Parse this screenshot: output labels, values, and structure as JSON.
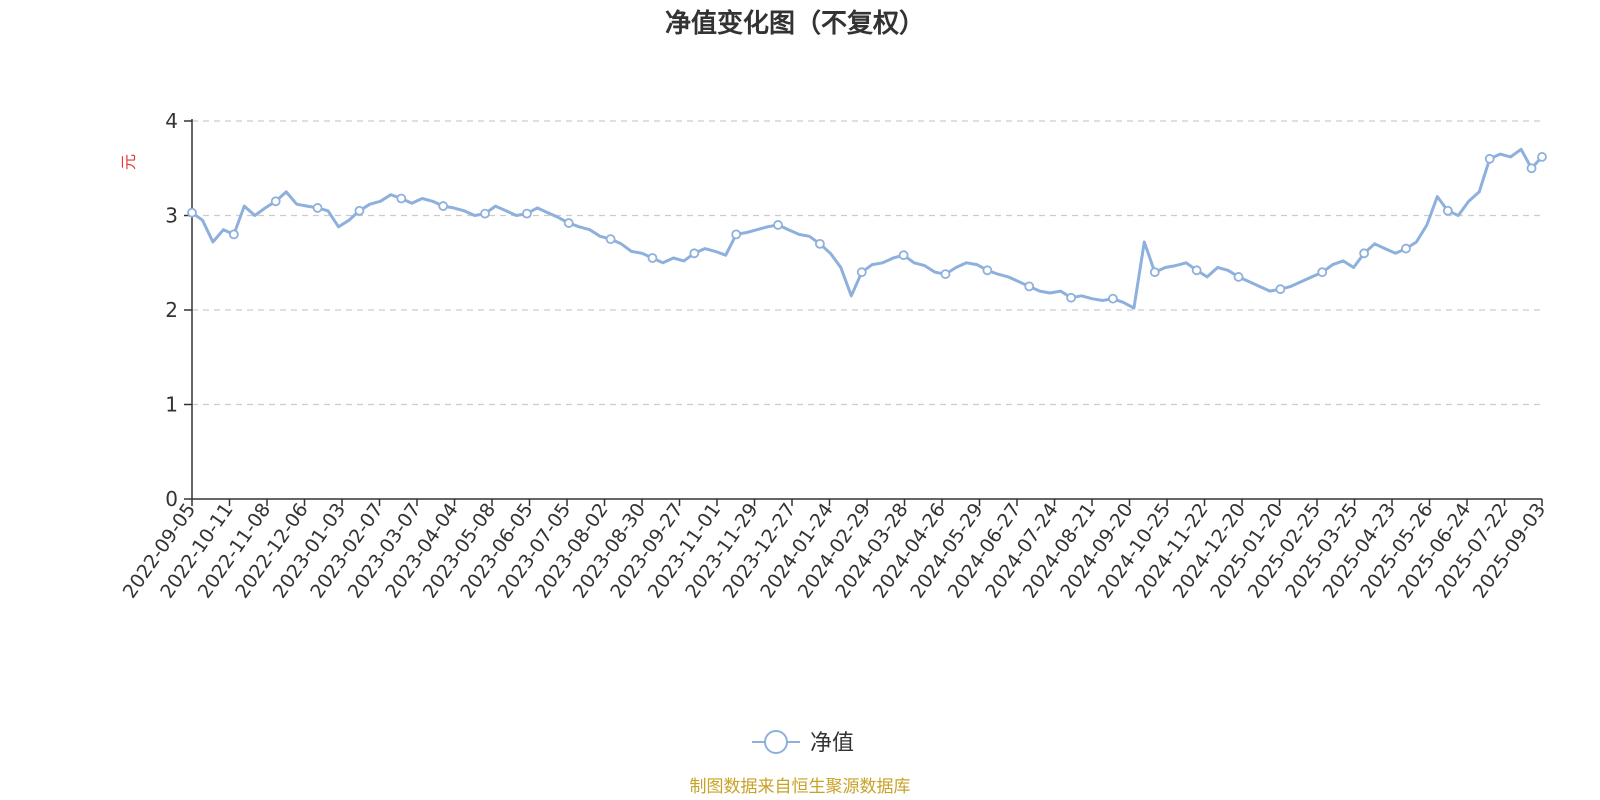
{
  "chart_data": {
    "type": "line",
    "title": "净值变化图（不复权）",
    "ylabel": "元",
    "xlabel": "",
    "ylim": [
      0,
      4
    ],
    "yticks": [
      0,
      1,
      2,
      3,
      4
    ],
    "grid": true,
    "x_ticks": [
      "2022-09-05",
      "2022-10-11",
      "2022-11-08",
      "2022-12-06",
      "2023-01-03",
      "2023-02-07",
      "2023-03-07",
      "2023-04-04",
      "2023-05-08",
      "2023-06-05",
      "2023-07-05",
      "2023-08-02",
      "2023-08-30",
      "2023-09-27",
      "2023-11-01",
      "2023-11-29",
      "2023-12-27",
      "2024-01-24",
      "2024-02-29",
      "2024-03-28",
      "2024-04-26",
      "2024-05-29",
      "2024-06-27",
      "2024-07-24",
      "2024-08-21",
      "2024-09-20",
      "2024-10-25",
      "2024-11-22",
      "2024-12-20",
      "2025-01-20",
      "2025-02-25",
      "2025-03-25",
      "2025-04-23",
      "2025-05-26",
      "2025-06-24",
      "2025-07-22",
      "2025-09-03"
    ],
    "series": [
      {
        "name": "净值",
        "color": "#8eb0dc",
        "values": [
          3.03,
          2.95,
          2.72,
          2.85,
          2.8,
          3.1,
          3.0,
          3.08,
          3.15,
          3.25,
          3.12,
          3.1,
          3.08,
          3.05,
          2.88,
          2.95,
          3.05,
          3.12,
          3.15,
          3.22,
          3.18,
          3.13,
          3.18,
          3.15,
          3.1,
          3.08,
          3.05,
          3.0,
          3.02,
          3.1,
          3.05,
          3.0,
          3.02,
          3.08,
          3.03,
          2.98,
          2.92,
          2.88,
          2.85,
          2.78,
          2.75,
          2.7,
          2.62,
          2.6,
          2.55,
          2.5,
          2.55,
          2.52,
          2.6,
          2.65,
          2.62,
          2.58,
          2.8,
          2.82,
          2.85,
          2.88,
          2.9,
          2.85,
          2.8,
          2.78,
          2.7,
          2.6,
          2.45,
          2.15,
          2.4,
          2.48,
          2.5,
          2.55,
          2.58,
          2.5,
          2.47,
          2.4,
          2.38,
          2.45,
          2.5,
          2.48,
          2.42,
          2.38,
          2.35,
          2.3,
          2.25,
          2.2,
          2.18,
          2.2,
          2.13,
          2.15,
          2.12,
          2.1,
          2.12,
          2.08,
          2.02,
          2.72,
          2.4,
          2.45,
          2.47,
          2.5,
          2.42,
          2.35,
          2.45,
          2.42,
          2.35,
          2.3,
          2.25,
          2.2,
          2.22,
          2.25,
          2.3,
          2.35,
          2.4,
          2.48,
          2.52,
          2.45,
          2.6,
          2.7,
          2.65,
          2.6,
          2.65,
          2.72,
          2.9,
          3.2,
          3.05,
          3.0,
          3.15,
          3.25,
          3.6,
          3.65,
          3.62,
          3.7,
          3.5,
          3.62
        ]
      }
    ],
    "markers_every": 4,
    "legend_position": "bottom-center",
    "source_note": "制图数据来自恒生聚源数据库"
  }
}
